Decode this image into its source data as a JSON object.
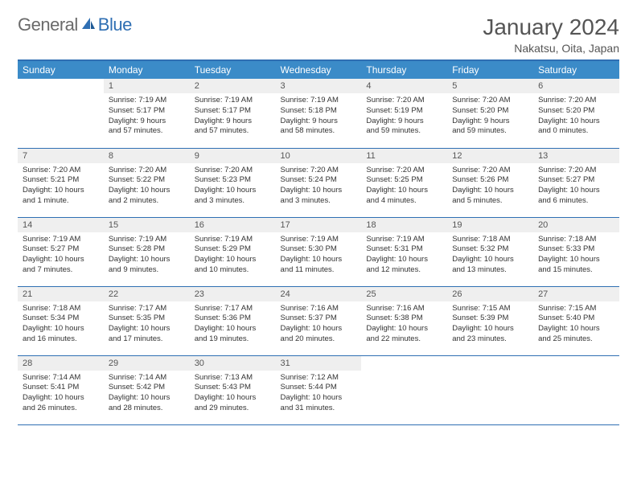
{
  "logo": {
    "word1": "General",
    "word2": "Blue"
  },
  "title": "January 2024",
  "location": "Nakatsu, Oita, Japan",
  "colors": {
    "header_bg": "#3b8bc8",
    "header_border": "#2f6fb3",
    "daynum_bg": "#efefef",
    "text": "#333333",
    "title_text": "#555555",
    "logo_gray": "#6a6a6a",
    "logo_blue": "#2f6fb3",
    "page_bg": "#ffffff"
  },
  "typography": {
    "title_fontsize": 28,
    "location_fontsize": 14,
    "dayhead_fontsize": 12,
    "daynum_fontsize": 11,
    "body_fontsize": 9.5
  },
  "dayNames": [
    "Sunday",
    "Monday",
    "Tuesday",
    "Wednesday",
    "Thursday",
    "Friday",
    "Saturday"
  ],
  "weeks": [
    [
      {
        "n": "",
        "lines": [
          "",
          "",
          "",
          ""
        ]
      },
      {
        "n": "1",
        "lines": [
          "Sunrise: 7:19 AM",
          "Sunset: 5:17 PM",
          "Daylight: 9 hours",
          "and 57 minutes."
        ]
      },
      {
        "n": "2",
        "lines": [
          "Sunrise: 7:19 AM",
          "Sunset: 5:17 PM",
          "Daylight: 9 hours",
          "and 57 minutes."
        ]
      },
      {
        "n": "3",
        "lines": [
          "Sunrise: 7:19 AM",
          "Sunset: 5:18 PM",
          "Daylight: 9 hours",
          "and 58 minutes."
        ]
      },
      {
        "n": "4",
        "lines": [
          "Sunrise: 7:20 AM",
          "Sunset: 5:19 PM",
          "Daylight: 9 hours",
          "and 59 minutes."
        ]
      },
      {
        "n": "5",
        "lines": [
          "Sunrise: 7:20 AM",
          "Sunset: 5:20 PM",
          "Daylight: 9 hours",
          "and 59 minutes."
        ]
      },
      {
        "n": "6",
        "lines": [
          "Sunrise: 7:20 AM",
          "Sunset: 5:20 PM",
          "Daylight: 10 hours",
          "and 0 minutes."
        ]
      }
    ],
    [
      {
        "n": "7",
        "lines": [
          "Sunrise: 7:20 AM",
          "Sunset: 5:21 PM",
          "Daylight: 10 hours",
          "and 1 minute."
        ]
      },
      {
        "n": "8",
        "lines": [
          "Sunrise: 7:20 AM",
          "Sunset: 5:22 PM",
          "Daylight: 10 hours",
          "and 2 minutes."
        ]
      },
      {
        "n": "9",
        "lines": [
          "Sunrise: 7:20 AM",
          "Sunset: 5:23 PM",
          "Daylight: 10 hours",
          "and 3 minutes."
        ]
      },
      {
        "n": "10",
        "lines": [
          "Sunrise: 7:20 AM",
          "Sunset: 5:24 PM",
          "Daylight: 10 hours",
          "and 3 minutes."
        ]
      },
      {
        "n": "11",
        "lines": [
          "Sunrise: 7:20 AM",
          "Sunset: 5:25 PM",
          "Daylight: 10 hours",
          "and 4 minutes."
        ]
      },
      {
        "n": "12",
        "lines": [
          "Sunrise: 7:20 AM",
          "Sunset: 5:26 PM",
          "Daylight: 10 hours",
          "and 5 minutes."
        ]
      },
      {
        "n": "13",
        "lines": [
          "Sunrise: 7:20 AM",
          "Sunset: 5:27 PM",
          "Daylight: 10 hours",
          "and 6 minutes."
        ]
      }
    ],
    [
      {
        "n": "14",
        "lines": [
          "Sunrise: 7:19 AM",
          "Sunset: 5:27 PM",
          "Daylight: 10 hours",
          "and 7 minutes."
        ]
      },
      {
        "n": "15",
        "lines": [
          "Sunrise: 7:19 AM",
          "Sunset: 5:28 PM",
          "Daylight: 10 hours",
          "and 9 minutes."
        ]
      },
      {
        "n": "16",
        "lines": [
          "Sunrise: 7:19 AM",
          "Sunset: 5:29 PM",
          "Daylight: 10 hours",
          "and 10 minutes."
        ]
      },
      {
        "n": "17",
        "lines": [
          "Sunrise: 7:19 AM",
          "Sunset: 5:30 PM",
          "Daylight: 10 hours",
          "and 11 minutes."
        ]
      },
      {
        "n": "18",
        "lines": [
          "Sunrise: 7:19 AM",
          "Sunset: 5:31 PM",
          "Daylight: 10 hours",
          "and 12 minutes."
        ]
      },
      {
        "n": "19",
        "lines": [
          "Sunrise: 7:18 AM",
          "Sunset: 5:32 PM",
          "Daylight: 10 hours",
          "and 13 minutes."
        ]
      },
      {
        "n": "20",
        "lines": [
          "Sunrise: 7:18 AM",
          "Sunset: 5:33 PM",
          "Daylight: 10 hours",
          "and 15 minutes."
        ]
      }
    ],
    [
      {
        "n": "21",
        "lines": [
          "Sunrise: 7:18 AM",
          "Sunset: 5:34 PM",
          "Daylight: 10 hours",
          "and 16 minutes."
        ]
      },
      {
        "n": "22",
        "lines": [
          "Sunrise: 7:17 AM",
          "Sunset: 5:35 PM",
          "Daylight: 10 hours",
          "and 17 minutes."
        ]
      },
      {
        "n": "23",
        "lines": [
          "Sunrise: 7:17 AM",
          "Sunset: 5:36 PM",
          "Daylight: 10 hours",
          "and 19 minutes."
        ]
      },
      {
        "n": "24",
        "lines": [
          "Sunrise: 7:16 AM",
          "Sunset: 5:37 PM",
          "Daylight: 10 hours",
          "and 20 minutes."
        ]
      },
      {
        "n": "25",
        "lines": [
          "Sunrise: 7:16 AM",
          "Sunset: 5:38 PM",
          "Daylight: 10 hours",
          "and 22 minutes."
        ]
      },
      {
        "n": "26",
        "lines": [
          "Sunrise: 7:15 AM",
          "Sunset: 5:39 PM",
          "Daylight: 10 hours",
          "and 23 minutes."
        ]
      },
      {
        "n": "27",
        "lines": [
          "Sunrise: 7:15 AM",
          "Sunset: 5:40 PM",
          "Daylight: 10 hours",
          "and 25 minutes."
        ]
      }
    ],
    [
      {
        "n": "28",
        "lines": [
          "Sunrise: 7:14 AM",
          "Sunset: 5:41 PM",
          "Daylight: 10 hours",
          "and 26 minutes."
        ]
      },
      {
        "n": "29",
        "lines": [
          "Sunrise: 7:14 AM",
          "Sunset: 5:42 PM",
          "Daylight: 10 hours",
          "and 28 minutes."
        ]
      },
      {
        "n": "30",
        "lines": [
          "Sunrise: 7:13 AM",
          "Sunset: 5:43 PM",
          "Daylight: 10 hours",
          "and 29 minutes."
        ]
      },
      {
        "n": "31",
        "lines": [
          "Sunrise: 7:12 AM",
          "Sunset: 5:44 PM",
          "Daylight: 10 hours",
          "and 31 minutes."
        ]
      },
      {
        "n": "",
        "lines": [
          "",
          "",
          "",
          ""
        ]
      },
      {
        "n": "",
        "lines": [
          "",
          "",
          "",
          ""
        ]
      },
      {
        "n": "",
        "lines": [
          "",
          "",
          "",
          ""
        ]
      }
    ]
  ]
}
